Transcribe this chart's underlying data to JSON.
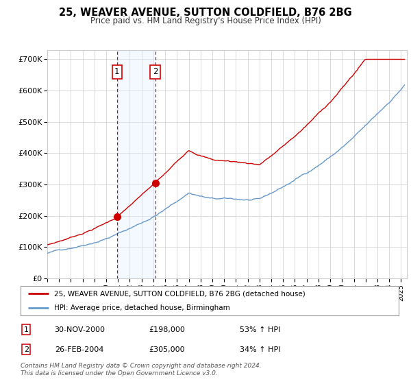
{
  "title": "25, WEAVER AVENUE, SUTTON COLDFIELD, B76 2BG",
  "subtitle": "Price paid vs. HM Land Registry's House Price Index (HPI)",
  "ylabel_ticks": [
    "£0",
    "£100K",
    "£200K",
    "£300K",
    "£400K",
    "£500K",
    "£600K",
    "£700K"
  ],
  "ytick_vals": [
    0,
    100000,
    200000,
    300000,
    400000,
    500000,
    600000,
    700000
  ],
  "ylim": [
    0,
    730000
  ],
  "xlim_start": 1995.0,
  "xlim_end": 2025.5,
  "transaction1_date": 2000.92,
  "transaction1_price": 198000,
  "transaction1_label": "1",
  "transaction2_date": 2004.15,
  "transaction2_price": 305000,
  "transaction2_label": "2",
  "legend_line1": "25, WEAVER AVENUE, SUTTON COLDFIELD, B76 2BG (detached house)",
  "legend_line2": "HPI: Average price, detached house, Birmingham",
  "table_row1": [
    "1",
    "30-NOV-2000",
    "£198,000",
    "53% ↑ HPI"
  ],
  "table_row2": [
    "2",
    "26-FEB-2004",
    "£305,000",
    "34% ↑ HPI"
  ],
  "footer": "Contains HM Land Registry data © Crown copyright and database right 2024.\nThis data is licensed under the Open Government Licence v3.0.",
  "red_color": "#cc0000",
  "blue_color": "#6699cc",
  "shade_color": "#ddeeff",
  "grid_color": "#cccccc",
  "background_color": "#ffffff"
}
